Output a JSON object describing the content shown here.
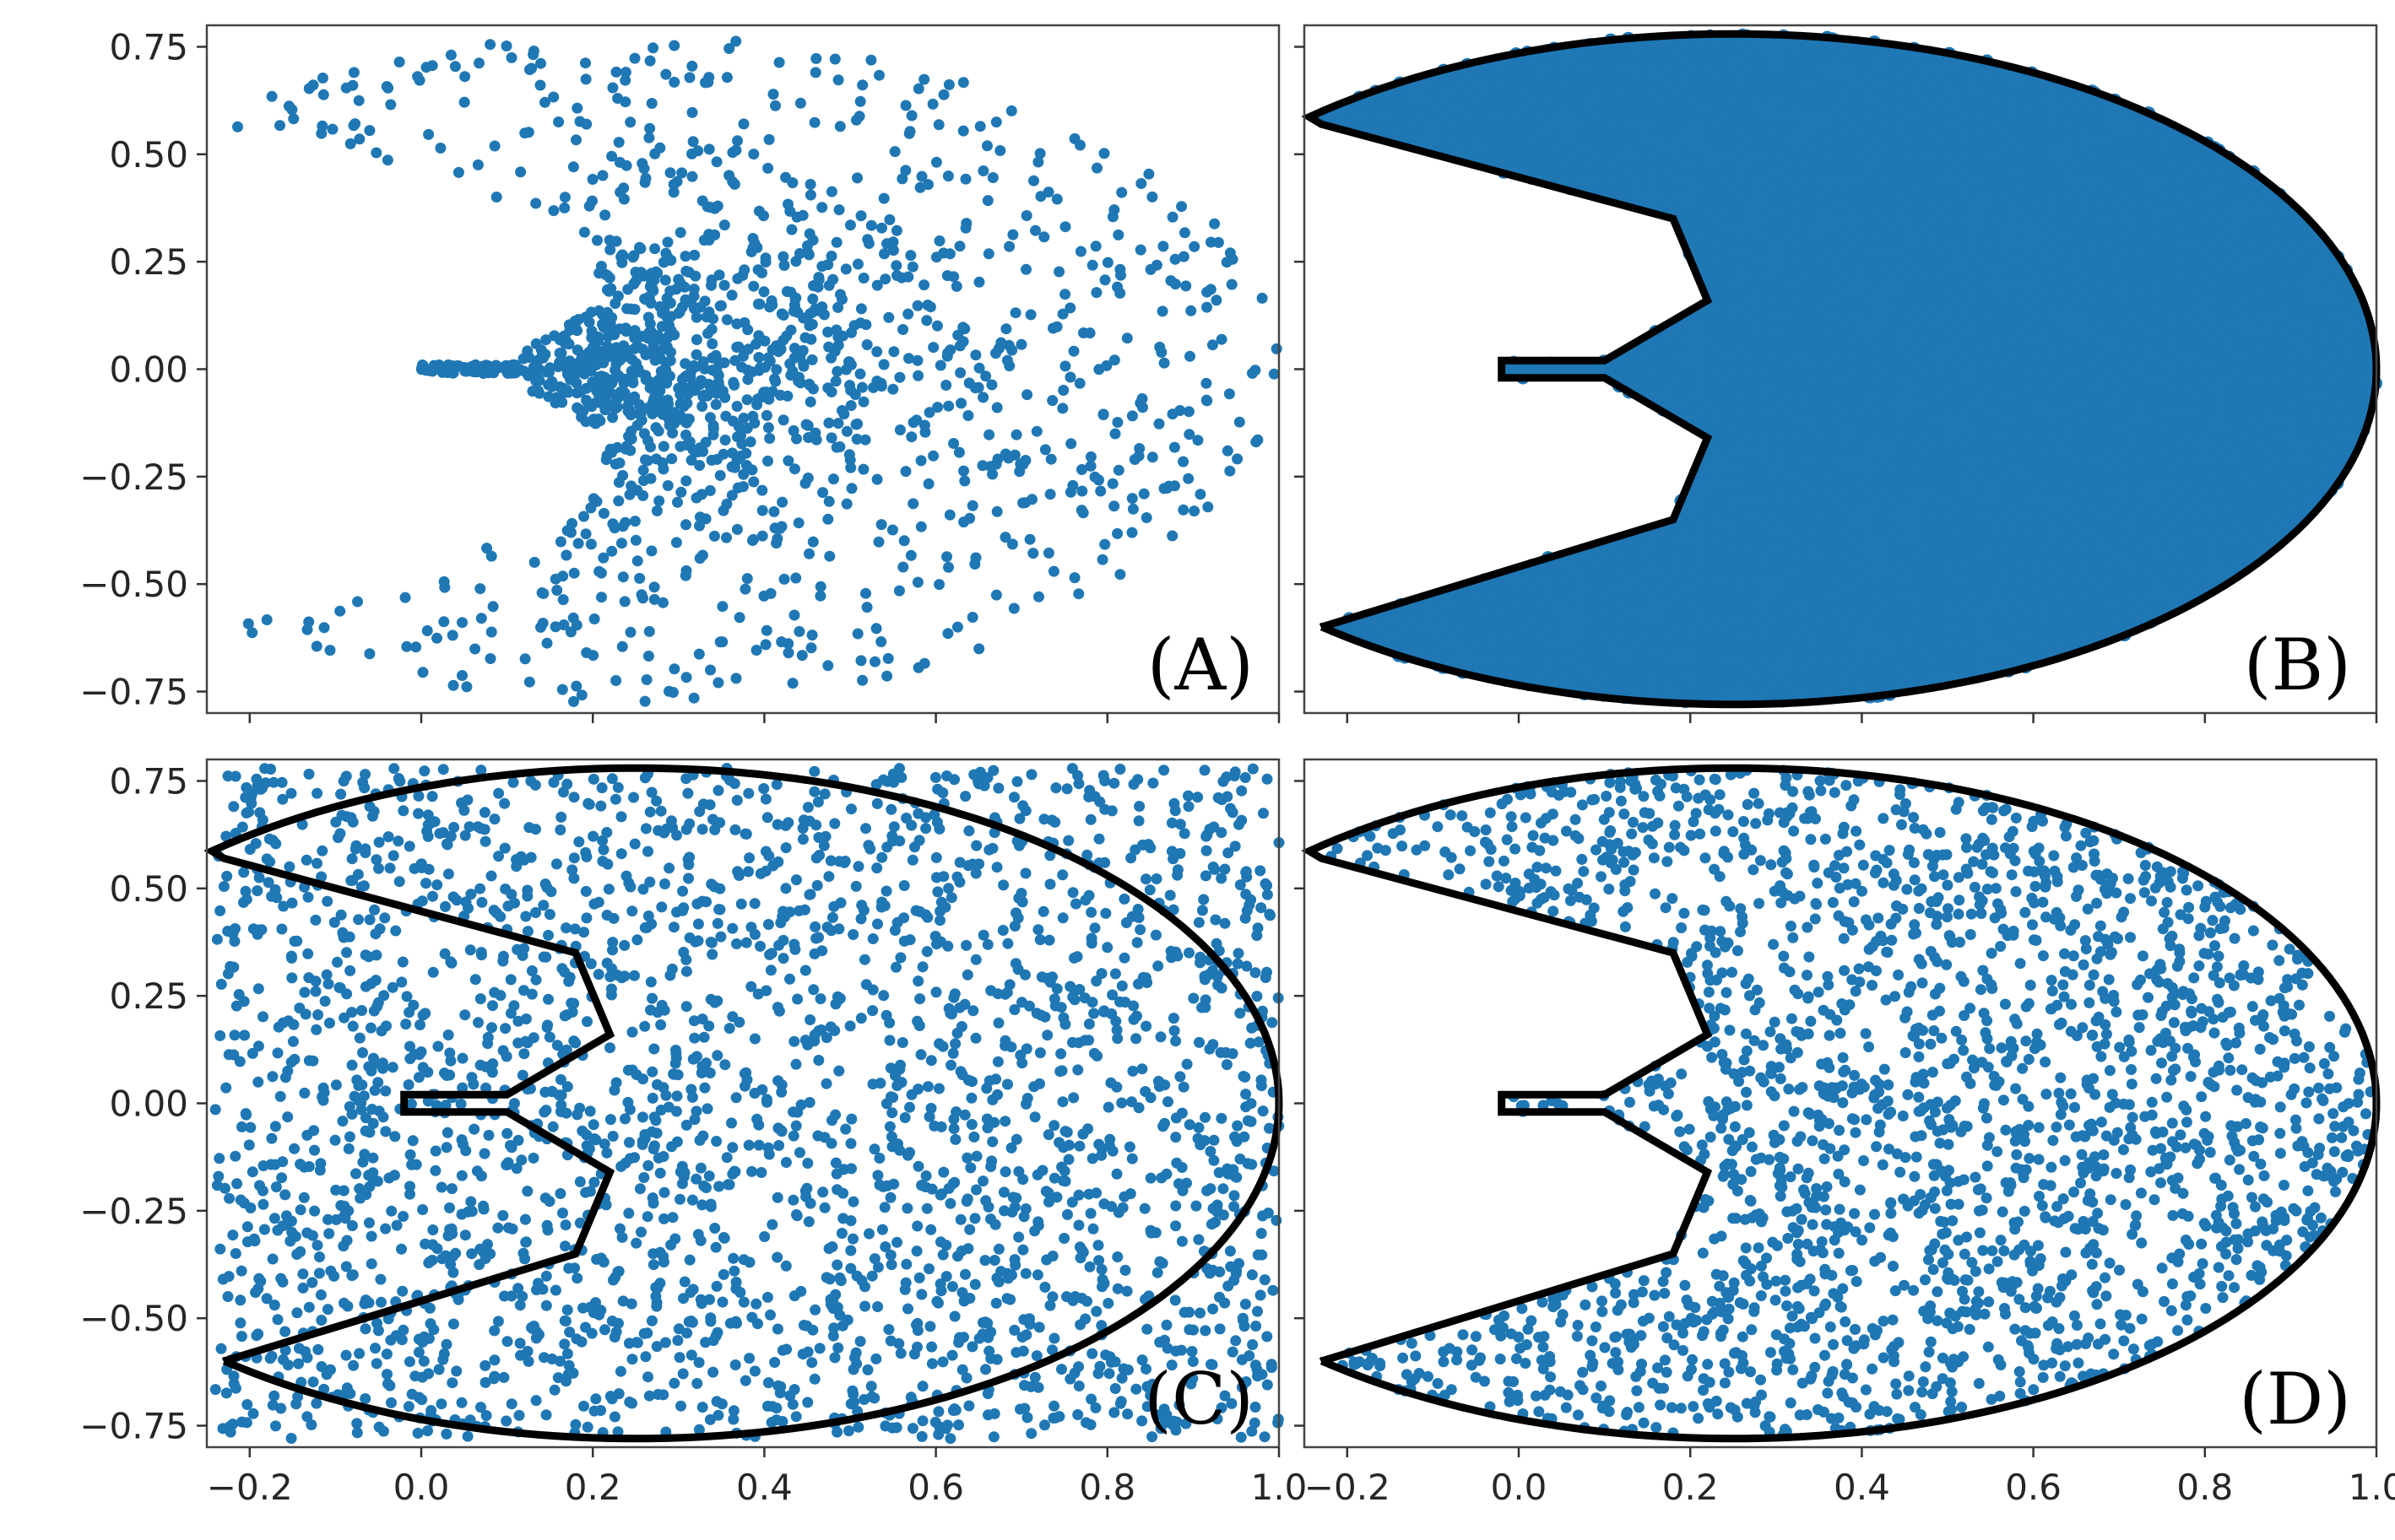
{
  "colors": {
    "point": "#1f77b4",
    "outline": "#000000",
    "frame": "#444444",
    "background": "#ffffff"
  },
  "chart_data": [
    {
      "type": "scatter",
      "panel_label": "(A)",
      "xlim": [
        -0.25,
        1.0
      ],
      "ylim": [
        -0.8,
        0.8
      ],
      "x_ticks": [],
      "y_ticks": [
        "0.75",
        "0.50",
        "0.25",
        "0.00",
        "−0.25",
        "−0.50",
        "−0.75"
      ],
      "y_tick_values": [
        0.75,
        0.5,
        0.25,
        0.0,
        -0.25,
        -0.5,
        -0.75
      ],
      "point_distribution": "pacman-shaped cloud, sparse near edges, dense core around x 0.1–0.5, thin stem at y=0 from x 0.0 to 0.1",
      "point_count": 1500,
      "boundary": false
    },
    {
      "type": "scatter",
      "panel_label": "(B)",
      "xlim": [
        -0.25,
        1.0
      ],
      "ylim": [
        -0.8,
        0.8
      ],
      "x_ticks": [],
      "y_ticks": [],
      "point_distribution": "domain filled solid, dense everywhere inside boundary",
      "point_count": 5000,
      "boundary": true
    },
    {
      "type": "scatter",
      "panel_label": "(C)",
      "xlim": [
        -0.25,
        1.0
      ],
      "ylim": [
        -0.8,
        0.8
      ],
      "x_ticks": [
        "−0.2",
        "0.0",
        "0.2",
        "0.4",
        "0.6",
        "0.8",
        "1.0"
      ],
      "x_tick_values": [
        -0.2,
        0.0,
        0.2,
        0.4,
        0.6,
        0.8,
        1.0
      ],
      "y_ticks": [
        "0.75",
        "0.50",
        "0.25",
        "0.00",
        "−0.25",
        "−0.50",
        "−0.75"
      ],
      "y_tick_values": [
        0.75,
        0.5,
        0.25,
        0.0,
        -0.25,
        -0.5,
        -0.75
      ],
      "point_distribution": "uniform over full rectangle x −0.24..1.0, y −0.78..0.78",
      "point_count": 2600,
      "boundary": true
    },
    {
      "type": "scatter",
      "panel_label": "(D)",
      "xlim": [
        -0.25,
        1.0
      ],
      "ylim": [
        -0.8,
        0.8
      ],
      "x_ticks": [
        "−0.2",
        "0.0",
        "0.2",
        "0.4",
        "0.6",
        "0.8",
        "1.0"
      ],
      "x_tick_values": [
        -0.2,
        0.0,
        0.2,
        0.4,
        0.6,
        0.8,
        1.0
      ],
      "y_ticks": [],
      "point_distribution": "uniform inside boundary only",
      "point_count": 2200,
      "boundary": true
    }
  ],
  "boundary_outline": {
    "ellipse_center": [
      0.25,
      0.0
    ],
    "ellipse_radii": [
      0.75,
      0.78
    ],
    "mouth_vertices": [
      [
        -0.23,
        0.57
      ],
      [
        0.18,
        0.35
      ],
      [
        0.22,
        0.16
      ],
      [
        0.1,
        0.02
      ],
      [
        -0.02,
        0.02
      ],
      [
        -0.02,
        -0.02
      ],
      [
        0.1,
        -0.02
      ],
      [
        0.22,
        -0.16
      ],
      [
        0.18,
        -0.35
      ],
      [
        -0.23,
        -0.6
      ]
    ]
  }
}
